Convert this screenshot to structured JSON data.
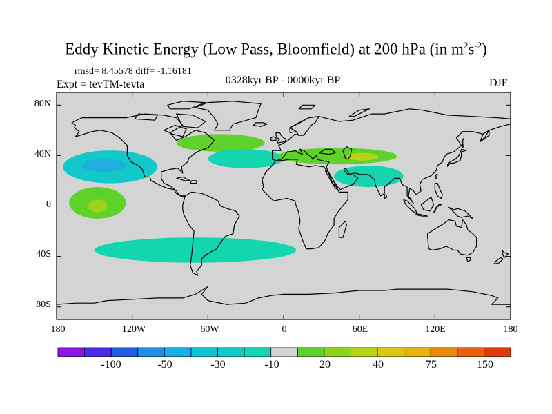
{
  "figure": {
    "title_main": "Eddy Kinetic Energy (Low Pass, Bloomfield) at 200 hPa (in m",
    "title_sup1": "2",
    "title_s": "s",
    "title_sup2": "-2",
    "title_close": ")",
    "stats": "rmsd= 8.45578 diff= -1.16181",
    "experiment": "Expt = tevTM-tevta",
    "period": "0328kyr BP - 0000kyr BP",
    "season": "DJF"
  },
  "map_data": {
    "projection": "cylindrical equidistant",
    "lon_range": [
      -180,
      180
    ],
    "lat_range": [
      -90,
      90
    ],
    "background_color": "#d4d4d4",
    "lat_ticks": [
      "80N",
      "40N",
      "0",
      "40S",
      "80S"
    ],
    "lon_ticks": [
      "180",
      "120W",
      "60W",
      "0",
      "60E",
      "120E",
      "180"
    ],
    "regions": [
      {
        "name": "north-pacific-negative",
        "level": -30,
        "color": "#13c8c8",
        "lon": [
          -175,
          -100
        ],
        "lat": [
          18,
          44
        ]
      },
      {
        "name": "north-pacific-core",
        "level": -50,
        "color": "#20aee0",
        "lon": [
          -160,
          -125
        ],
        "lat": [
          27,
          37
        ]
      },
      {
        "name": "subtropical-pacific-positive",
        "level": 20,
        "color": "#5fd22a",
        "lon": [
          -170,
          -125
        ],
        "lat": [
          -10,
          15
        ]
      },
      {
        "name": "subtropical-pacific-core",
        "level": 40,
        "color": "#a0d21a",
        "lon": [
          -155,
          -140
        ],
        "lat": [
          -5,
          5
        ]
      },
      {
        "name": "north-atlantic-positive",
        "level": 20,
        "color": "#5fd22a",
        "lon": [
          -85,
          -15
        ],
        "lat": [
          43,
          57
        ]
      },
      {
        "name": "atlantic-negative",
        "level": -10,
        "color": "#13d6b0",
        "lon": [
          -60,
          0
        ],
        "lat": [
          30,
          45
        ]
      },
      {
        "name": "eurasia-jet-positive",
        "level": 20,
        "color": "#5fd22a",
        "lon": [
          -5,
          90
        ],
        "lat": [
          33,
          46
        ]
      },
      {
        "name": "eurasia-jet-core",
        "level": 40,
        "color": "#b8d21a",
        "lon": [
          50,
          75
        ],
        "lat": [
          36,
          42
        ]
      },
      {
        "name": "south-asia-negative",
        "level": -10,
        "color": "#13d6b0",
        "lon": [
          40,
          95
        ],
        "lat": [
          15,
          32
        ]
      },
      {
        "name": "southern-ocean-negative",
        "level": -10,
        "color": "#13d6b0",
        "lon": [
          -150,
          10
        ],
        "lat": [
          -45,
          -25
        ]
      }
    ]
  },
  "colorbar": {
    "levels": [
      "-100",
      "-50",
      "-30",
      "-10",
      "20",
      "40",
      "75",
      "150"
    ],
    "colors": [
      "#8b14e6",
      "#4a2ce8",
      "#2060e0",
      "#1e90e8",
      "#16aee6",
      "#10c4d8",
      "#13c8c8",
      "#13d6b0",
      "#d4d4d4",
      "#5fd22a",
      "#8ed41e",
      "#b8d21a",
      "#dcc814",
      "#e8b010",
      "#e8880e",
      "#e8620c",
      "#e03a0a"
    ]
  }
}
